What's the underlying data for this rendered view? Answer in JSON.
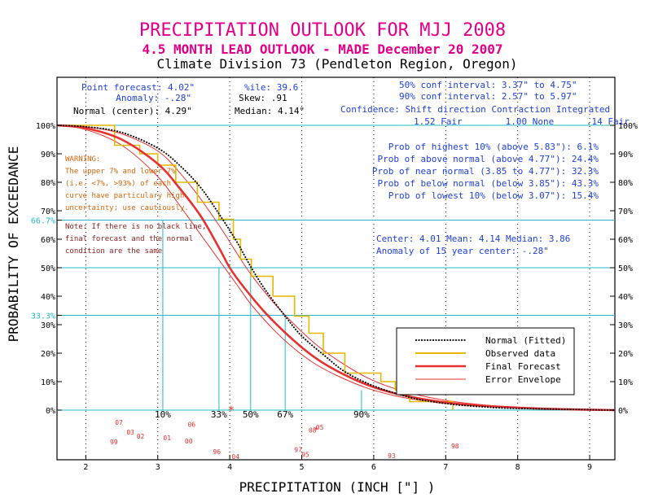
{
  "header": {
    "title": "PRECIPITATION OUTLOOK FOR MJJ 2008",
    "subtitle": "4.5 MONTH LEAD OUTLOOK  - MADE December 20 2007",
    "division": "Climate Division 73 (Pendleton Region, Oregon)"
  },
  "stats": {
    "point_forecast": "Point forecast: 4.02\"",
    "anomaly": "Anomaly: -.28\"",
    "normal_center": "Normal (center): 4.29\"",
    "pctile": "%ile:  39.6",
    "skew": "Skew:    .91",
    "median": "Median: 4.14\"",
    "conf50": "50% conf interval: 3.37\" to 4.75\"",
    "conf90": "90% conf interval: 2.57\" to 5.97\"",
    "confidence_header": "Confidence: Shift direction   Contraction   Integrated",
    "confidence_values": "1.52 Fair        1.00 None      .14 Fair"
  },
  "warning": {
    "lines": [
      "WARNING:",
      "The upper 7% and lower 7%",
      "(i.e. <7%, >93%) of each",
      "curve have particulary high",
      "uncertainty; use cautiously."
    ]
  },
  "note": {
    "lines": [
      "Note: If there is no black line,",
      "final forecast and the normal",
      "condition are the same"
    ]
  },
  "probs": {
    "lines": [
      "Prob of highest 10% (above 5.83\"): 6.1%",
      "Prob of above normal (above 4.77\"): 24.4%",
      "Prob of near normal (3.85 to 4.77\"): 32.3%",
      "Prob of below normal (below 3.85\"): 43.3%",
      "Prob of lowest 10% (below 3.07\"): 15.4%"
    ]
  },
  "center_info": {
    "line1": "Center: 4.01 Mean: 4.14 Median: 3.86",
    "line2": "Anomaly of 15 year center: -.28\""
  },
  "legend": {
    "items": [
      {
        "label": "Normal (Fitted)",
        "color": "#000000",
        "style": "dotted"
      },
      {
        "label": "Observed data",
        "color": "#e6b800",
        "style": "solid"
      },
      {
        "label": "Final Forecast",
        "color": "#e83030",
        "style": "thick"
      },
      {
        "label": "Error Envelope",
        "color": "#e83030",
        "style": "thin"
      }
    ]
  },
  "colors": {
    "title": "#e0008a",
    "stats": "#1f3fd6",
    "cyan": "#22b8c8",
    "warning": "#d8660a",
    "note": "#8b1a1a",
    "red": "#e83030",
    "gold": "#e6b800",
    "year": "#e83030"
  },
  "chart_data": {
    "type": "line",
    "title": "PRECIPITATION OUTLOOK FOR MJJ 2008",
    "xlabel": "PRECIPITATION (INCH [\"] )",
    "ylabel": "PROBABILITY OF EXCEEDANCE",
    "xlim": [
      1.6,
      9.35
    ],
    "ylim": [
      0,
      100
    ],
    "x_ticks": [
      2,
      3,
      4,
      5,
      6,
      7,
      8,
      9
    ],
    "y_ticks": [
      {
        "v": 0,
        "label": "0%"
      },
      {
        "v": 10,
        "label": "10%"
      },
      {
        "v": 20,
        "label": "20%"
      },
      {
        "v": 30,
        "label": "30%"
      },
      {
        "v": 33.3,
        "label": "33.3%"
      },
      {
        "v": 40,
        "label": "40%"
      },
      {
        "v": 50,
        "label": "50%"
      },
      {
        "v": 60,
        "label": "60%"
      },
      {
        "v": 66.7,
        "label": "66.7%"
      },
      {
        "v": 70,
        "label": "70%"
      },
      {
        "v": 80,
        "label": "80%"
      },
      {
        "v": 90,
        "label": "90%"
      },
      {
        "v": 100,
        "label": "100%"
      }
    ],
    "right_ticks": [
      {
        "v": 0,
        "label": "0%"
      },
      {
        "v": 10,
        "label": "10%"
      },
      {
        "v": 20,
        "label": "20%"
      },
      {
        "v": 30,
        "label": "30%"
      },
      {
        "v": 40,
        "label": "40%"
      },
      {
        "v": 50,
        "label": "50%"
      },
      {
        "v": 60,
        "label": "60%"
      },
      {
        "v": 70,
        "label": "70%"
      },
      {
        "v": 80,
        "label": "80%"
      },
      {
        "v": 90,
        "label": "90%"
      },
      {
        "v": 100,
        "label": "100%"
      }
    ],
    "hlines": [
      0,
      33.3,
      50,
      66.7,
      100
    ],
    "percentile_markers": [
      {
        "label": "10%",
        "x": 3.07,
        "p": 66.7
      },
      {
        "label": "33%",
        "x": 3.85,
        "p": 50
      },
      {
        "label": "50%",
        "x": 4.29,
        "p": 50
      },
      {
        "label": "67%",
        "x": 4.77,
        "p": 33.3
      },
      {
        "label": "90%",
        "x": 5.83,
        "p": 7
      }
    ],
    "point_forecast_x": 4.02,
    "series": [
      {
        "name": "Normal (Fitted)",
        "color": "#000000",
        "style": "dotted",
        "points": [
          [
            1.6,
            100
          ],
          [
            2.0,
            99.5
          ],
          [
            2.5,
            97.5
          ],
          [
            3.0,
            92
          ],
          [
            3.3,
            86
          ],
          [
            3.6,
            78
          ],
          [
            3.9,
            67
          ],
          [
            4.1,
            59
          ],
          [
            4.3,
            50
          ],
          [
            4.5,
            42
          ],
          [
            4.8,
            32
          ],
          [
            5.0,
            26
          ],
          [
            5.3,
            19.5
          ],
          [
            5.6,
            13.5
          ],
          [
            6.0,
            8.5
          ],
          [
            6.5,
            4.5
          ],
          [
            7.0,
            2.3
          ],
          [
            7.5,
            1.2
          ],
          [
            8.0,
            0.6
          ],
          [
            9.35,
            0
          ]
        ]
      },
      {
        "name": "Observed data",
        "color": "#e6b800",
        "style": "step",
        "points": [
          [
            1.6,
            100
          ],
          [
            2.4,
            100
          ],
          [
            2.4,
            93
          ],
          [
            2.75,
            93
          ],
          [
            2.75,
            90
          ],
          [
            3.0,
            90
          ],
          [
            3.0,
            86
          ],
          [
            3.25,
            86
          ],
          [
            3.25,
            80
          ],
          [
            3.55,
            80
          ],
          [
            3.55,
            73
          ],
          [
            3.85,
            73
          ],
          [
            3.85,
            67
          ],
          [
            4.05,
            67
          ],
          [
            4.05,
            60
          ],
          [
            4.15,
            60
          ],
          [
            4.15,
            53
          ],
          [
            4.3,
            53
          ],
          [
            4.3,
            47
          ],
          [
            4.6,
            47
          ],
          [
            4.6,
            40
          ],
          [
            4.9,
            40
          ],
          [
            4.9,
            33
          ],
          [
            5.1,
            33
          ],
          [
            5.1,
            27
          ],
          [
            5.3,
            27
          ],
          [
            5.3,
            20
          ],
          [
            5.6,
            20
          ],
          [
            5.6,
            13
          ],
          [
            6.1,
            13
          ],
          [
            6.1,
            10
          ],
          [
            6.3,
            10
          ],
          [
            6.3,
            7
          ],
          [
            6.5,
            7
          ],
          [
            6.5,
            3
          ],
          [
            7.1,
            3
          ],
          [
            7.1,
            0
          ]
        ]
      },
      {
        "name": "Final Forecast",
        "color": "#e83030",
        "style": "thick",
        "points": [
          [
            1.6,
            100
          ],
          [
            2.0,
            99
          ],
          [
            2.5,
            95
          ],
          [
            3.0,
            86.5
          ],
          [
            3.3,
            78
          ],
          [
            3.6,
            68
          ],
          [
            3.85,
            57
          ],
          [
            4.0,
            50
          ],
          [
            4.2,
            43
          ],
          [
            4.5,
            34
          ],
          [
            4.8,
            26.5
          ],
          [
            5.1,
            20
          ],
          [
            5.4,
            15
          ],
          [
            5.8,
            10
          ],
          [
            6.2,
            6.5
          ],
          [
            6.7,
            3.8
          ],
          [
            7.2,
            2.1
          ],
          [
            7.8,
            1.1
          ],
          [
            8.5,
            0.4
          ],
          [
            9.35,
            0
          ]
        ]
      },
      {
        "name": "Error Envelope Upper",
        "color": "#e83030",
        "style": "thin",
        "points": [
          [
            1.6,
            100
          ],
          [
            2.0,
            99.5
          ],
          [
            2.5,
            97
          ],
          [
            3.0,
            91
          ],
          [
            3.3,
            83.5
          ],
          [
            3.6,
            74
          ],
          [
            3.9,
            63
          ],
          [
            4.1,
            55
          ],
          [
            4.3,
            47.5
          ],
          [
            4.6,
            38
          ],
          [
            4.9,
            30
          ],
          [
            5.2,
            23
          ],
          [
            5.5,
            17.5
          ],
          [
            5.9,
            11.5
          ],
          [
            6.3,
            7.5
          ],
          [
            6.8,
            4.3
          ],
          [
            7.3,
            2.4
          ],
          [
            8.0,
            1.0
          ],
          [
            9.35,
            0
          ]
        ]
      },
      {
        "name": "Error Envelope Lower",
        "color": "#e83030",
        "style": "thin",
        "points": [
          [
            1.6,
            100
          ],
          [
            2.0,
            98.5
          ],
          [
            2.5,
            93
          ],
          [
            3.0,
            82
          ],
          [
            3.3,
            72
          ],
          [
            3.6,
            61.5
          ],
          [
            3.9,
            51
          ],
          [
            4.1,
            44
          ],
          [
            4.3,
            37
          ],
          [
            4.6,
            28.5
          ],
          [
            4.9,
            21.5
          ],
          [
            5.2,
            16
          ],
          [
            5.5,
            12
          ],
          [
            5.9,
            7.8
          ],
          [
            6.3,
            5.0
          ],
          [
            6.8,
            2.9
          ],
          [
            7.3,
            1.7
          ],
          [
            8.0,
            0.8
          ],
          [
            9.35,
            0
          ]
        ]
      }
    ],
    "year_labels": [
      {
        "label": "07",
        "x": 2.46,
        "row": 1
      },
      {
        "label": "03",
        "x": 2.62,
        "row": 2
      },
      {
        "label": "02",
        "x": 2.76,
        "row": 2.4
      },
      {
        "label": "99",
        "x": 2.39,
        "row": 3
      },
      {
        "label": "01",
        "x": 3.13,
        "row": 2.6
      },
      {
        "label": "06",
        "x": 3.47,
        "row": 1.2
      },
      {
        "label": "00",
        "x": 3.43,
        "row": 2.9
      },
      {
        "label": "96",
        "x": 3.82,
        "row": 4
      },
      {
        "label": "04",
        "x": 4.08,
        "row": 4.5
      },
      {
        "label": "97",
        "x": 4.95,
        "row": 3.8
      },
      {
        "label": "95",
        "x": 5.05,
        "row": 4.3
      },
      {
        "label": "05",
        "x": 5.25,
        "row": 1.5
      },
      {
        "label": "08",
        "x": 5.15,
        "row": 1.8
      },
      {
        "label": "93",
        "x": 6.25,
        "row": 4.4
      },
      {
        "label": "98",
        "x": 7.13,
        "row": 3.4
      }
    ]
  }
}
